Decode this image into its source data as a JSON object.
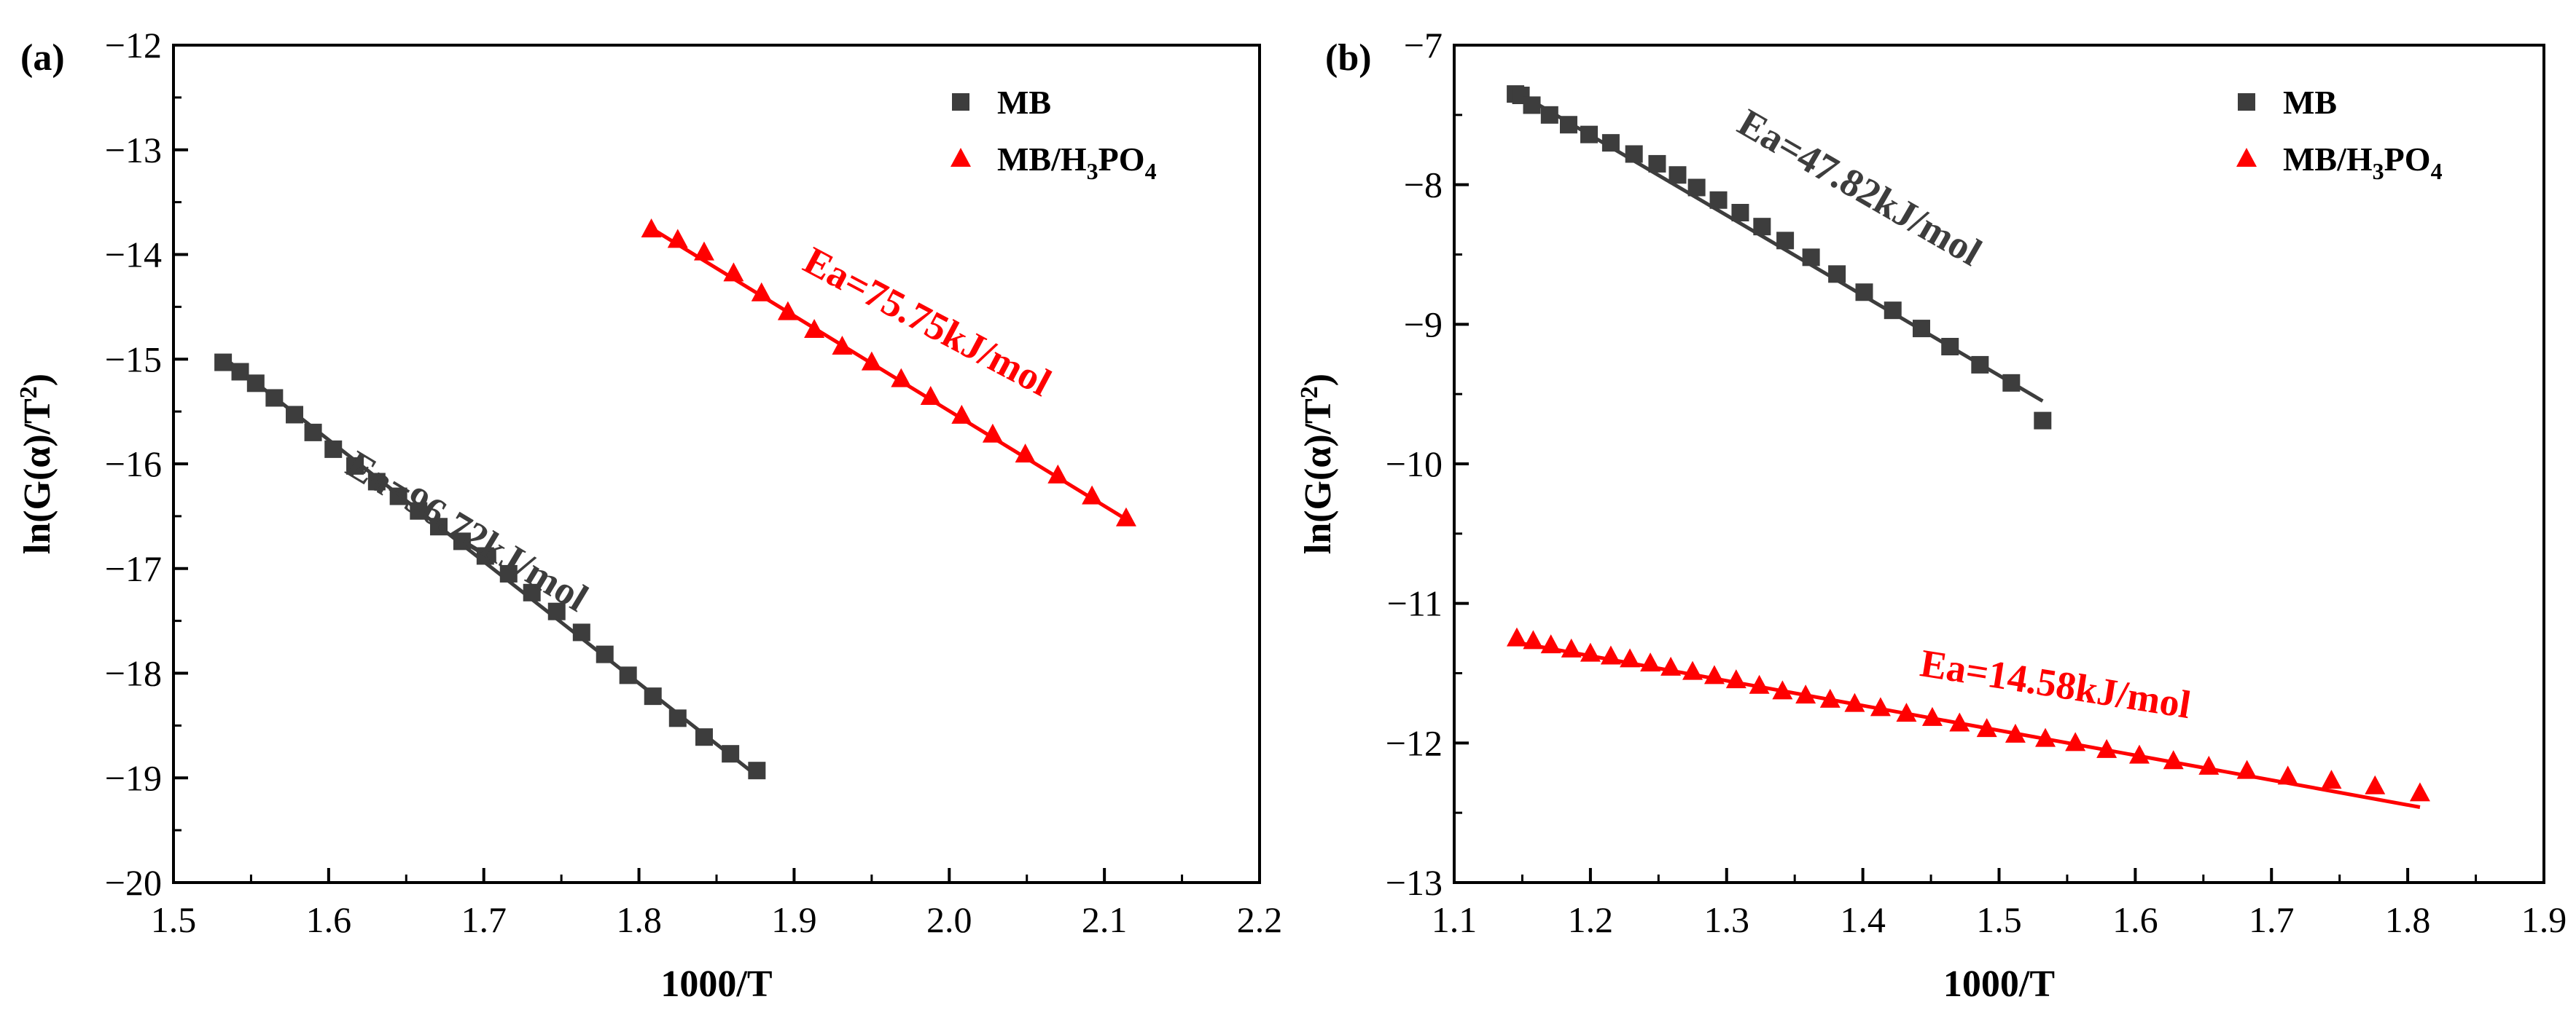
{
  "chart_data": [
    {
      "type": "scatter",
      "panel_label": "(a)",
      "xlabel": "1000/T",
      "ylabel": "ln(G(α)/T²)",
      "ylabel_main": "ln(G(α)/T",
      "ylabel_sup": "2",
      "ylabel_end": ")",
      "xlim": [
        1.5,
        2.2
      ],
      "ylim": [
        -20,
        -12
      ],
      "xticks": [
        1.5,
        1.6,
        1.7,
        1.8,
        1.9,
        2.0,
        2.1,
        2.2
      ],
      "xtick_labels": [
        "1.5",
        "1.6",
        "1.7",
        "1.8",
        "1.9",
        "2.0",
        "2.1",
        "2.2"
      ],
      "yticks": [
        -20,
        -19,
        -18,
        -17,
        -16,
        -15,
        -14,
        -13,
        -12
      ],
      "ytick_labels": [
        "−20",
        "−19",
        "−18",
        "−17",
        "−16",
        "−15",
        "−14",
        "−13",
        "−12"
      ],
      "legend_position": "top-right",
      "series": [
        {
          "name": "MB",
          "legend_label": "MB",
          "marker": "square",
          "color": "#3d3d3d",
          "x": [
            1.532,
            1.543,
            1.553,
            1.565,
            1.578,
            1.59,
            1.603,
            1.617,
            1.631,
            1.645,
            1.658,
            1.671,
            1.686,
            1.701,
            1.716,
            1.731,
            1.747,
            1.763,
            1.778,
            1.793,
            1.809,
            1.825,
            1.842,
            1.859,
            1.876
          ],
          "y": [
            -15.03,
            -15.12,
            -15.23,
            -15.37,
            -15.53,
            -15.7,
            -15.86,
            -16.02,
            -16.17,
            -16.31,
            -16.45,
            -16.6,
            -16.74,
            -16.88,
            -17.05,
            -17.23,
            -17.41,
            -17.61,
            -17.82,
            -18.02,
            -18.22,
            -18.43,
            -18.61,
            -18.77,
            -18.93
          ],
          "fit": {
            "x": [
              1.532,
              1.876
            ],
            "y": [
              -14.98,
              -18.98
            ]
          },
          "ea_label": "Ea=96.72kJ/mol",
          "ea_anchor": [
            1.685,
            -16.75
          ],
          "ea_rotation": 31
        },
        {
          "name": "MB/H3PO4",
          "legend_label_main": "MB/H",
          "legend_label_sub1": "3",
          "legend_label_mid": "PO",
          "legend_label_sub2": "4",
          "marker": "triangle",
          "color": "#ff0000",
          "x": [
            1.808,
            1.825,
            1.842,
            1.861,
            1.879,
            1.896,
            1.913,
            1.931,
            1.95,
            1.969,
            1.988,
            2.008,
            2.028,
            2.049,
            2.07,
            2.092,
            2.114
          ],
          "y": [
            -13.76,
            -13.86,
            -13.98,
            -14.18,
            -14.37,
            -14.55,
            -14.72,
            -14.88,
            -15.03,
            -15.19,
            -15.36,
            -15.54,
            -15.72,
            -15.91,
            -16.11,
            -16.31,
            -16.52
          ],
          "fit": {
            "x": [
              1.808,
              2.114
            ],
            "y": [
              -13.75,
              -16.53
            ]
          },
          "ea_label": "Ea=75.75kJ/mol",
          "ea_anchor": [
            1.982,
            -14.75
          ],
          "ea_rotation": 28
        }
      ]
    },
    {
      "type": "scatter",
      "panel_label": "(b)",
      "xlabel": "1000/T",
      "ylabel": "ln(G(α)/T²)",
      "ylabel_main": "ln(G(α)/T",
      "ylabel_sup": "2",
      "ylabel_end": ")",
      "xlim": [
        1.1,
        1.9
      ],
      "ylim": [
        -13,
        -7
      ],
      "xticks": [
        1.1,
        1.2,
        1.3,
        1.4,
        1.5,
        1.6,
        1.7,
        1.8,
        1.9
      ],
      "xtick_labels": [
        "1.1",
        "1.2",
        "1.3",
        "1.4",
        "1.5",
        "1.6",
        "1.7",
        "1.8",
        "1.9"
      ],
      "yticks": [
        -13,
        -12,
        -11,
        -10,
        -9,
        -8,
        -7
      ],
      "ytick_labels": [
        "−13",
        "−12",
        "−11",
        "−10",
        "−9",
        "−8",
        "−7"
      ],
      "legend_position": "top-right",
      "series": [
        {
          "name": "MB",
          "legend_label": "MB",
          "marker": "square",
          "color": "#3d3d3d",
          "x": [
            1.145,
            1.149,
            1.157,
            1.17,
            1.184,
            1.199,
            1.215,
            1.232,
            1.249,
            1.264,
            1.278,
            1.294,
            1.31,
            1.326,
            1.343,
            1.362,
            1.381,
            1.401,
            1.422,
            1.443,
            1.464,
            1.486,
            1.509,
            1.532
          ],
          "y": [
            -7.35,
            -7.36,
            -7.43,
            -7.5,
            -7.57,
            -7.64,
            -7.7,
            -7.78,
            -7.85,
            -7.93,
            -8.02,
            -8.11,
            -8.2,
            -8.3,
            -8.4,
            -8.52,
            -8.64,
            -8.77,
            -8.9,
            -9.03,
            -9.16,
            -9.29,
            -9.42,
            -9.69
          ],
          "fit": {
            "x": [
              1.145,
              1.532
            ],
            "y": [
              -7.33,
              -9.55
            ]
          },
          "ea_label": "Ea=47.82kJ/mol",
          "ea_anchor": [
            1.393,
            -8.1
          ],
          "ea_rotation": 30
        },
        {
          "name": "MB/H3PO4",
          "legend_label_main": "MB/H",
          "legend_label_sub1": "3",
          "legend_label_mid": "PO",
          "legend_label_sub2": "4",
          "marker": "triangle",
          "color": "#ff0000",
          "x": [
            1.146,
            1.158,
            1.171,
            1.186,
            1.2,
            1.215,
            1.229,
            1.244,
            1.259,
            1.275,
            1.291,
            1.307,
            1.324,
            1.341,
            1.358,
            1.376,
            1.394,
            1.413,
            1.432,
            1.451,
            1.471,
            1.491,
            1.512,
            1.534,
            1.556,
            1.579,
            1.603,
            1.628,
            1.654,
            1.682,
            1.712,
            1.744,
            1.776,
            1.809
          ],
          "y": [
            -11.25,
            -11.27,
            -11.3,
            -11.33,
            -11.36,
            -11.38,
            -11.4,
            -11.43,
            -11.46,
            -11.49,
            -11.52,
            -11.55,
            -11.59,
            -11.63,
            -11.66,
            -11.69,
            -11.72,
            -11.75,
            -11.79,
            -11.82,
            -11.86,
            -11.9,
            -11.94,
            -11.97,
            -12.0,
            -12.05,
            -12.09,
            -12.13,
            -12.17,
            -12.2,
            -12.24,
            -12.27,
            -12.31,
            -12.36
          ],
          "fit": {
            "x": [
              1.146,
              1.809
            ],
            "y": [
              -11.28,
              -12.46
            ]
          },
          "ea_label": "Ea=14.58kJ/mol",
          "ea_anchor": [
            1.54,
            -11.67
          ],
          "ea_rotation": 9
        }
      ]
    }
  ]
}
